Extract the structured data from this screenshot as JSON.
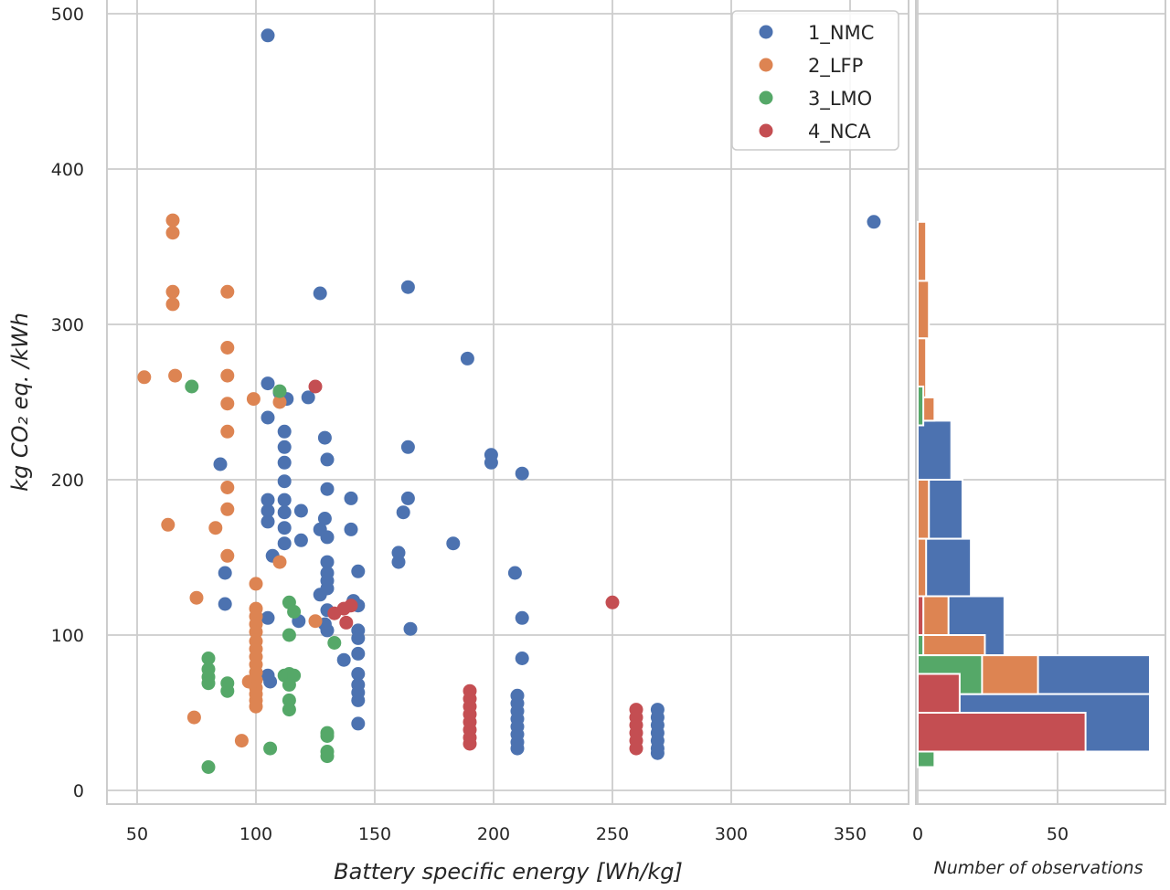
{
  "chart_data": [
    {
      "type": "scatter",
      "xlabel": "Battery specific energy [Wh/kg]",
      "ylabel": "kg CO₂ eq. /kWh",
      "xlim": [
        38,
        390
      ],
      "ylim": [
        -8,
        505
      ],
      "xticks": [
        "50",
        "100",
        "150",
        "200",
        "250",
        "300",
        "350"
      ],
      "yticks": [
        "0",
        "100",
        "200",
        "300",
        "400",
        "500"
      ],
      "grid": true,
      "legend_position": "top-right",
      "series": [
        {
          "name": "1_NMC",
          "color": "#4c72b0",
          "points": [
            [
              105,
              486
            ],
            [
              360,
              366
            ],
            [
              127,
              320
            ],
            [
              164,
              324
            ],
            [
              189,
              278
            ],
            [
              105,
              262
            ],
            [
              110,
              256
            ],
            [
              113,
              252
            ],
            [
              122,
              253
            ],
            [
              105,
              240
            ],
            [
              112,
              231
            ],
            [
              129,
              227
            ],
            [
              112,
              221
            ],
            [
              164,
              221
            ],
            [
              112,
              211
            ],
            [
              130,
              213
            ],
            [
              85,
              210
            ],
            [
              199,
              216
            ],
            [
              199,
              211
            ],
            [
              212,
              204
            ],
            [
              112,
              199
            ],
            [
              130,
              194
            ],
            [
              105,
              187
            ],
            [
              112,
              187
            ],
            [
              140,
              188
            ],
            [
              164,
              188
            ],
            [
              105,
              180
            ],
            [
              112,
              179
            ],
            [
              119,
              180
            ],
            [
              129,
              175
            ],
            [
              105,
              173
            ],
            [
              112,
              169
            ],
            [
              127,
              168
            ],
            [
              140,
              168
            ],
            [
              162,
              179
            ],
            [
              112,
              159
            ],
            [
              119,
              161
            ],
            [
              130,
              163
            ],
            [
              107,
              151
            ],
            [
              183,
              159
            ],
            [
              160,
              153
            ],
            [
              160,
              147
            ],
            [
              130,
              147
            ],
            [
              87,
              140
            ],
            [
              130,
              140
            ],
            [
              130,
              135
            ],
            [
              143,
              141
            ],
            [
              209,
              140
            ],
            [
              127,
              126
            ],
            [
              130,
              130
            ],
            [
              118,
              109
            ],
            [
              141,
              122
            ],
            [
              130,
              116
            ],
            [
              143,
              119
            ],
            [
              87,
              120
            ],
            [
              105,
              111
            ],
            [
              212,
              111
            ],
            [
              129,
              107
            ],
            [
              130,
              103
            ],
            [
              143,
              103
            ],
            [
              143,
              98
            ],
            [
              165,
              104
            ],
            [
              143,
              88
            ],
            [
              137,
              84
            ],
            [
              212,
              85
            ],
            [
              105,
              74
            ],
            [
              106,
              70
            ],
            [
              143,
              75
            ],
            [
              143,
              68
            ],
            [
              143,
              63
            ],
            [
              143,
              58
            ],
            [
              143,
              43
            ],
            [
              210,
              61
            ],
            [
              210,
              56
            ],
            [
              210,
              51
            ],
            [
              210,
              46
            ],
            [
              210,
              41
            ],
            [
              210,
              36
            ],
            [
              210,
              31
            ],
            [
              210,
              27
            ],
            [
              269,
              52
            ],
            [
              269,
              47
            ],
            [
              269,
              42
            ],
            [
              269,
              37
            ],
            [
              269,
              32
            ],
            [
              269,
              27
            ],
            [
              269,
              24
            ]
          ]
        },
        {
          "name": "2_LFP",
          "color": "#dd8452",
          "points": [
            [
              65,
              367
            ],
            [
              65,
              359
            ],
            [
              65,
              321
            ],
            [
              65,
              313
            ],
            [
              88,
              321
            ],
            [
              88,
              285
            ],
            [
              53,
              266
            ],
            [
              66,
              267
            ],
            [
              88,
              267
            ],
            [
              99,
              252
            ],
            [
              110,
              250
            ],
            [
              88,
              249
            ],
            [
              88,
              231
            ],
            [
              88,
              195
            ],
            [
              88,
              181
            ],
            [
              63,
              171
            ],
            [
              83,
              169
            ],
            [
              88,
              151
            ],
            [
              110,
              147
            ],
            [
              100,
              133
            ],
            [
              75,
              124
            ],
            [
              100,
              117
            ],
            [
              100,
              112
            ],
            [
              100,
              107
            ],
            [
              100,
              102
            ],
            [
              125,
              109
            ],
            [
              100,
              96
            ],
            [
              100,
              91
            ],
            [
              100,
              86
            ],
            [
              100,
              81
            ],
            [
              100,
              76
            ],
            [
              100,
              71
            ],
            [
              97,
              70
            ],
            [
              100,
              66
            ],
            [
              100,
              62
            ],
            [
              100,
              58
            ],
            [
              100,
              54
            ],
            [
              74,
              47
            ],
            [
              94,
              32
            ]
          ]
        },
        {
          "name": "3_LMO",
          "color": "#55a868",
          "points": [
            [
              73,
              260
            ],
            [
              110,
              257
            ],
            [
              114,
              121
            ],
            [
              116,
              115
            ],
            [
              114,
              100
            ],
            [
              133,
              95
            ],
            [
              80,
              85
            ],
            [
              80,
              78
            ],
            [
              80,
              73
            ],
            [
              80,
              69
            ],
            [
              88,
              69
            ],
            [
              88,
              64
            ],
            [
              112,
              74
            ],
            [
              114,
              75
            ],
            [
              116,
              74
            ],
            [
              114,
              68
            ],
            [
              114,
              58
            ],
            [
              114,
              52
            ],
            [
              130,
              37
            ],
            [
              130,
              35
            ],
            [
              130,
              25
            ],
            [
              130,
              22
            ],
            [
              106,
              27
            ],
            [
              80,
              15
            ]
          ]
        },
        {
          "name": "4_NCA",
          "color": "#c44e52",
          "points": [
            [
              125,
              260
            ],
            [
              250,
              121
            ],
            [
              133,
              114
            ],
            [
              137,
              117
            ],
            [
              140,
              119
            ],
            [
              138,
              108
            ],
            [
              190,
              64
            ],
            [
              190,
              59
            ],
            [
              190,
              54
            ],
            [
              190,
              49
            ],
            [
              190,
              44
            ],
            [
              190,
              39
            ],
            [
              190,
              34
            ],
            [
              190,
              30
            ],
            [
              260,
              52
            ],
            [
              260,
              47
            ],
            [
              260,
              42
            ],
            [
              260,
              37
            ],
            [
              260,
              32
            ],
            [
              260,
              27
            ]
          ]
        }
      ]
    },
    {
      "type": "bar",
      "orientation": "horizontal",
      "xlabel": "Number of observations",
      "xticks": [
        "0",
        "50"
      ],
      "xlim": [
        0,
        85
      ],
      "series": [
        {
          "name": "1_NMC",
          "color": "#4c72b0",
          "bins": [
            [
              238,
              200,
              12
            ],
            [
              200,
              162,
              16
            ],
            [
              162,
              125,
              19
            ],
            [
              125,
              87,
              31
            ],
            [
              87,
              62,
              83
            ],
            [
              62,
              25,
              83
            ]
          ]
        },
        {
          "name": "2_LFP",
          "color": "#dd8452",
          "bins": [
            [
              366,
              328,
              3
            ],
            [
              328,
              291,
              4
            ],
            [
              291,
              253,
              3
            ],
            [
              253,
              238,
              6
            ],
            [
              200,
              162,
              4
            ],
            [
              162,
              125,
              3
            ],
            [
              125,
              100,
              11
            ],
            [
              100,
              87,
              24
            ],
            [
              87,
              62,
              43
            ],
            [
              62,
              25,
              9
            ]
          ]
        },
        {
          "name": "3_LMO",
          "color": "#55a868",
          "bins": [
            [
              260,
              235,
              2
            ],
            [
              125,
              100,
              2
            ],
            [
              100,
              87,
              2
            ],
            [
              87,
              62,
              23
            ],
            [
              40,
              15,
              6
            ]
          ]
        },
        {
          "name": "4_NCA",
          "color": "#c44e52",
          "bins": [
            [
              125,
              100,
              2
            ],
            [
              75,
              50,
              15
            ],
            [
              50,
              25,
              60
            ]
          ]
        }
      ]
    }
  ]
}
